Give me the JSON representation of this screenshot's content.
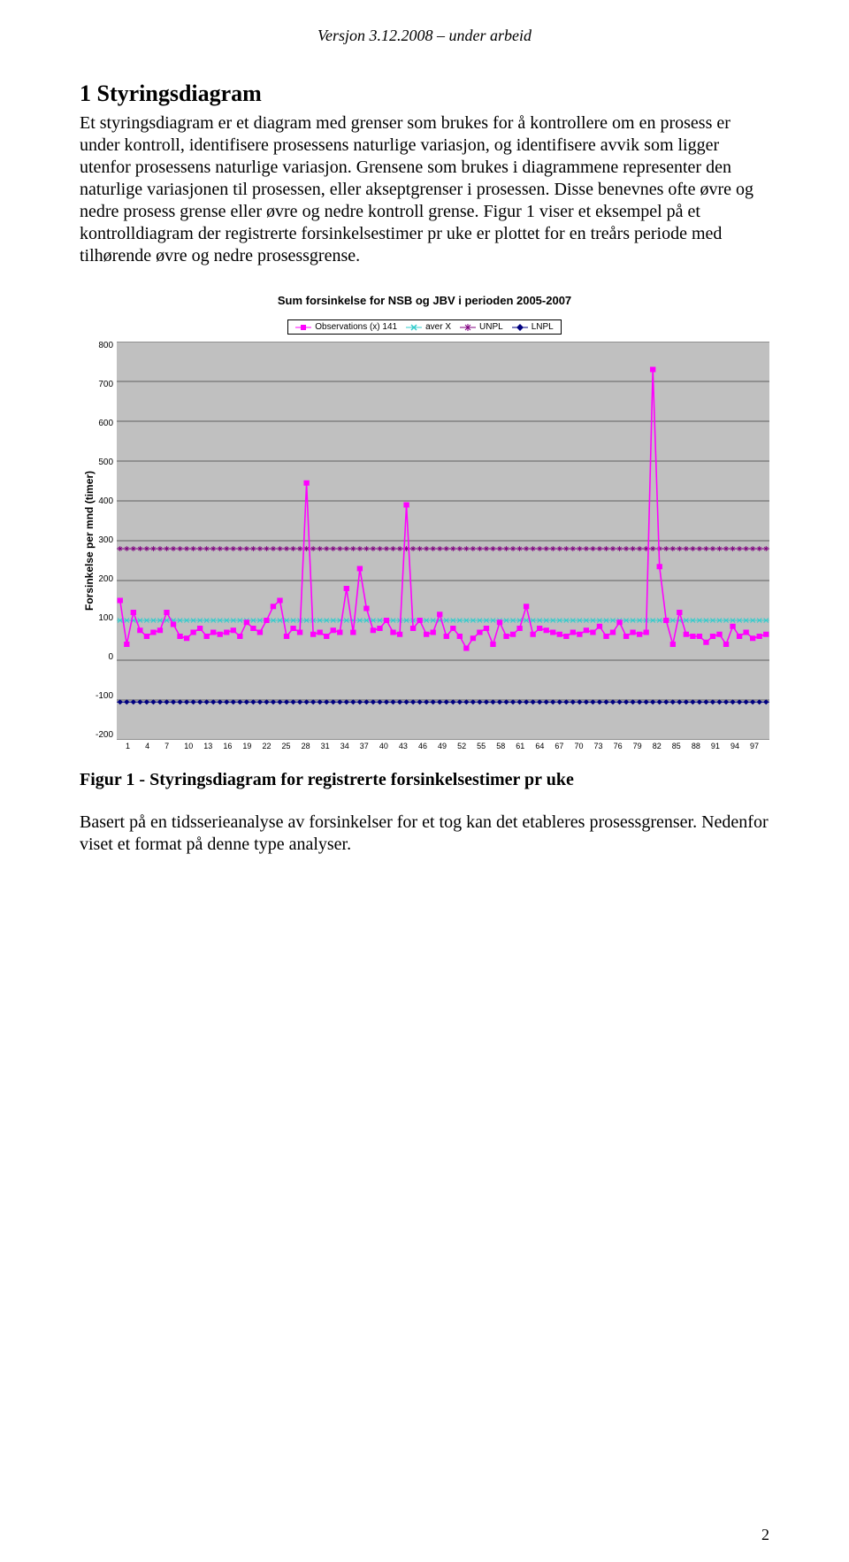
{
  "header": "Versjon 3.12.2008 – under arbeid",
  "section_number_title": "1  Styringsdiagram",
  "para1": "Et styringsdiagram er et diagram med grenser som brukes for å kontrollere om en prosess er under kontroll, identifisere prosessens naturlige variasjon, og identifisere avvik som ligger utenfor prosessens naturlige variasjon. Grensene som brukes i diagrammene representer den naturlige variasjonen til prosessen, eller akseptgrenser i prosessen. Disse benevnes ofte øvre og nedre prosess grense eller øvre og nedre kontroll grense. Figur 1 viser et eksempel på et kontrolldiagram der registrerte forsinkelsestimer pr uke er plottet for en treårs periode med tilhørende øvre og nedre prosessgrense.",
  "chart": {
    "title": "Sum forsinkelse for NSB og JBV i perioden 2005-2007",
    "y_axis_title": "Forsinkelse per mnd (timer)",
    "legend": {
      "obs": "Observations (x) 141",
      "aver": "aver X",
      "unpl": "UNPL",
      "lnpl": "LNPL"
    },
    "colors": {
      "plot_bg": "#c0c0c0",
      "grid": "#000000",
      "obs": "#ff00ff",
      "aver": "#33cccc",
      "unpl": "#800080",
      "lnpl": "#000080"
    },
    "y_min": -200,
    "y_max": 800,
    "y_ticks": [
      "800",
      "700",
      "600",
      "500",
      "400",
      "300",
      "200",
      "100",
      "0",
      "-100",
      "-200"
    ],
    "x_ticks": [
      "1",
      "4",
      "7",
      "10",
      "13",
      "16",
      "19",
      "22",
      "25",
      "28",
      "31",
      "34",
      "37",
      "40",
      "43",
      "46",
      "49",
      "52",
      "55",
      "58",
      "61",
      "64",
      "67",
      "70",
      "73",
      "76",
      "79",
      "82",
      "85",
      "88",
      "91",
      "94",
      "97"
    ],
    "aver_value": 100,
    "unpl_value": 280,
    "lnpl_value": -105,
    "observations": [
      150,
      40,
      120,
      75,
      60,
      70,
      75,
      120,
      90,
      60,
      55,
      70,
      80,
      60,
      70,
      65,
      70,
      75,
      60,
      95,
      80,
      70,
      100,
      135,
      150,
      60,
      80,
      70,
      445,
      65,
      70,
      60,
      75,
      70,
      180,
      70,
      230,
      130,
      75,
      80,
      100,
      70,
      65,
      390,
      80,
      100,
      65,
      70,
      115,
      60,
      80,
      60,
      30,
      55,
      70,
      80,
      40,
      95,
      60,
      65,
      80,
      135,
      65,
      80,
      75,
      70,
      65,
      60,
      70,
      65,
      75,
      70,
      85,
      60,
      70,
      95,
      60,
      70,
      65,
      70,
      730,
      235,
      100,
      40,
      120,
      65,
      60,
      60,
      45,
      60,
      65,
      40,
      85,
      60,
      70,
      55,
      60,
      65
    ]
  },
  "fig_caption": "Figur 1 - Styringsdiagram for registrerte forsinkelsestimer pr uke",
  "para2": "Basert på en tidsserieanalyse av forsinkelser for et tog kan det etableres prosessgrenser. Nedenfor viset et format på denne type analyser.",
  "page_number": "2"
}
